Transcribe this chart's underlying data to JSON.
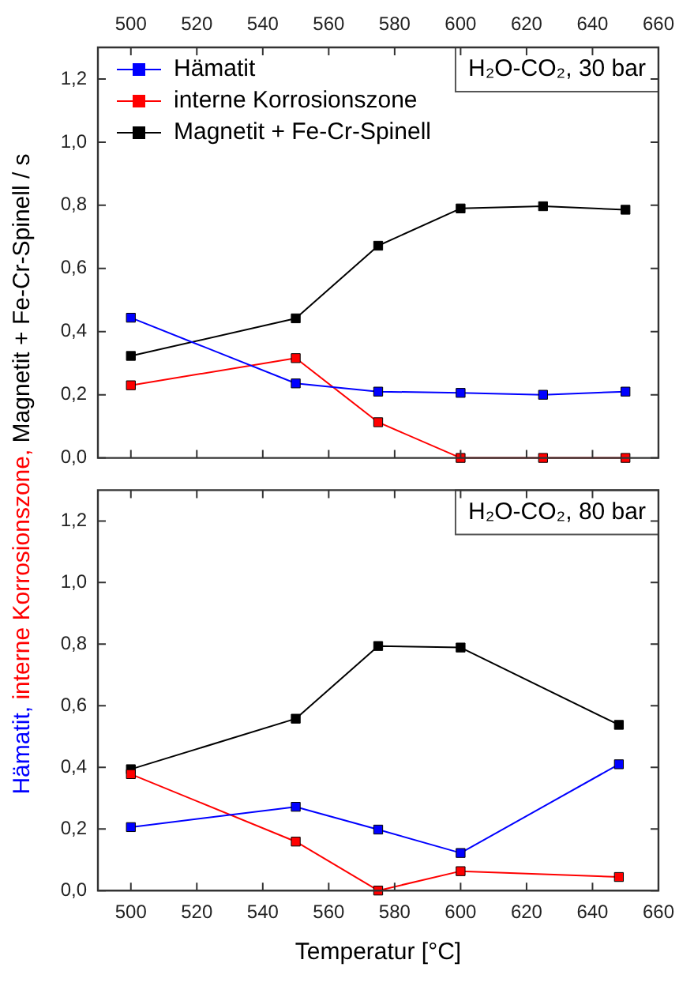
{
  "chart_data": [
    {
      "type": "line",
      "ylabel": "Hämatit, interne Korrosionszone, Magnetit + Fe-Cr-Spinell / s",
      "xlim": [
        490,
        660
      ],
      "xticks": [
        500,
        520,
        540,
        560,
        580,
        600,
        620,
        640,
        660
      ],
      "ylim": [
        0,
        1.3
      ],
      "yticks": [
        {
          "value": 0,
          "label": "0,0"
        },
        {
          "value": 0.2,
          "label": "0,2"
        },
        {
          "value": 0.4,
          "label": "0,4"
        },
        {
          "value": 0.6,
          "label": "0,6"
        },
        {
          "value": 0.8,
          "label": "0,8"
        },
        {
          "value": 1.0,
          "label": "1,0"
        },
        {
          "value": 1.2,
          "label": "1,2"
        }
      ],
      "marker": "square",
      "legend": "top left",
      "grid": false,
      "annotations": [
        "H₂O-CO₂, 30 bar"
      ],
      "series": [
        {
          "name": "Hämatit",
          "color": "#0000ff",
          "x": [
            500,
            550,
            575,
            600,
            625,
            650
          ],
          "values": [
            0.444,
            0.236,
            0.21,
            0.206,
            0.2,
            0.21
          ]
        },
        {
          "name": "interne Korrosionszone",
          "color": "#ff0000",
          "x": [
            500,
            550,
            575,
            600,
            625,
            650
          ],
          "values": [
            0.23,
            0.316,
            0.113,
            0,
            0,
            0
          ]
        },
        {
          "name": "Magnetit + Fe-Cr-Spinell",
          "color": "#000000",
          "x": [
            500,
            550,
            575,
            600,
            625,
            650
          ],
          "values": [
            0.323,
            0.442,
            0.672,
            0.79,
            0.797,
            0.786
          ]
        }
      ]
    },
    {
      "type": "line",
      "xlabel": "Temperatur [°C]",
      "xlim": [
        490,
        660
      ],
      "xticks": [
        500,
        520,
        540,
        560,
        580,
        600,
        620,
        640,
        660
      ],
      "ylim": [
        0,
        1.3
      ],
      "yticks": [
        {
          "value": 0,
          "label": "0,0"
        },
        {
          "value": 0.2,
          "label": "0,2"
        },
        {
          "value": 0.4,
          "label": "0,4"
        },
        {
          "value": 0.6,
          "label": "0,6"
        },
        {
          "value": 0.8,
          "label": "0,8"
        },
        {
          "value": 1.0,
          "label": "1,0"
        },
        {
          "value": 1.2,
          "label": "1,2"
        }
      ],
      "marker": "square",
      "grid": false,
      "annotations": [
        "H₂O-CO₂, 80 bar"
      ],
      "series": [
        {
          "color": "#0000ff",
          "x": [
            500,
            550,
            575,
            600,
            648
          ],
          "values": [
            0.206,
            0.272,
            0.198,
            0.122,
            0.41
          ]
        },
        {
          "color": "#ff0000",
          "x": [
            500,
            550,
            575,
            600,
            648
          ],
          "values": [
            0.378,
            0.159,
            0,
            0.063,
            0.044
          ]
        },
        {
          "color": "#000000",
          "x": [
            500,
            550,
            575,
            600,
            648
          ],
          "values": [
            0.394,
            0.558,
            0.794,
            0.789,
            0.538
          ]
        }
      ]
    }
  ]
}
